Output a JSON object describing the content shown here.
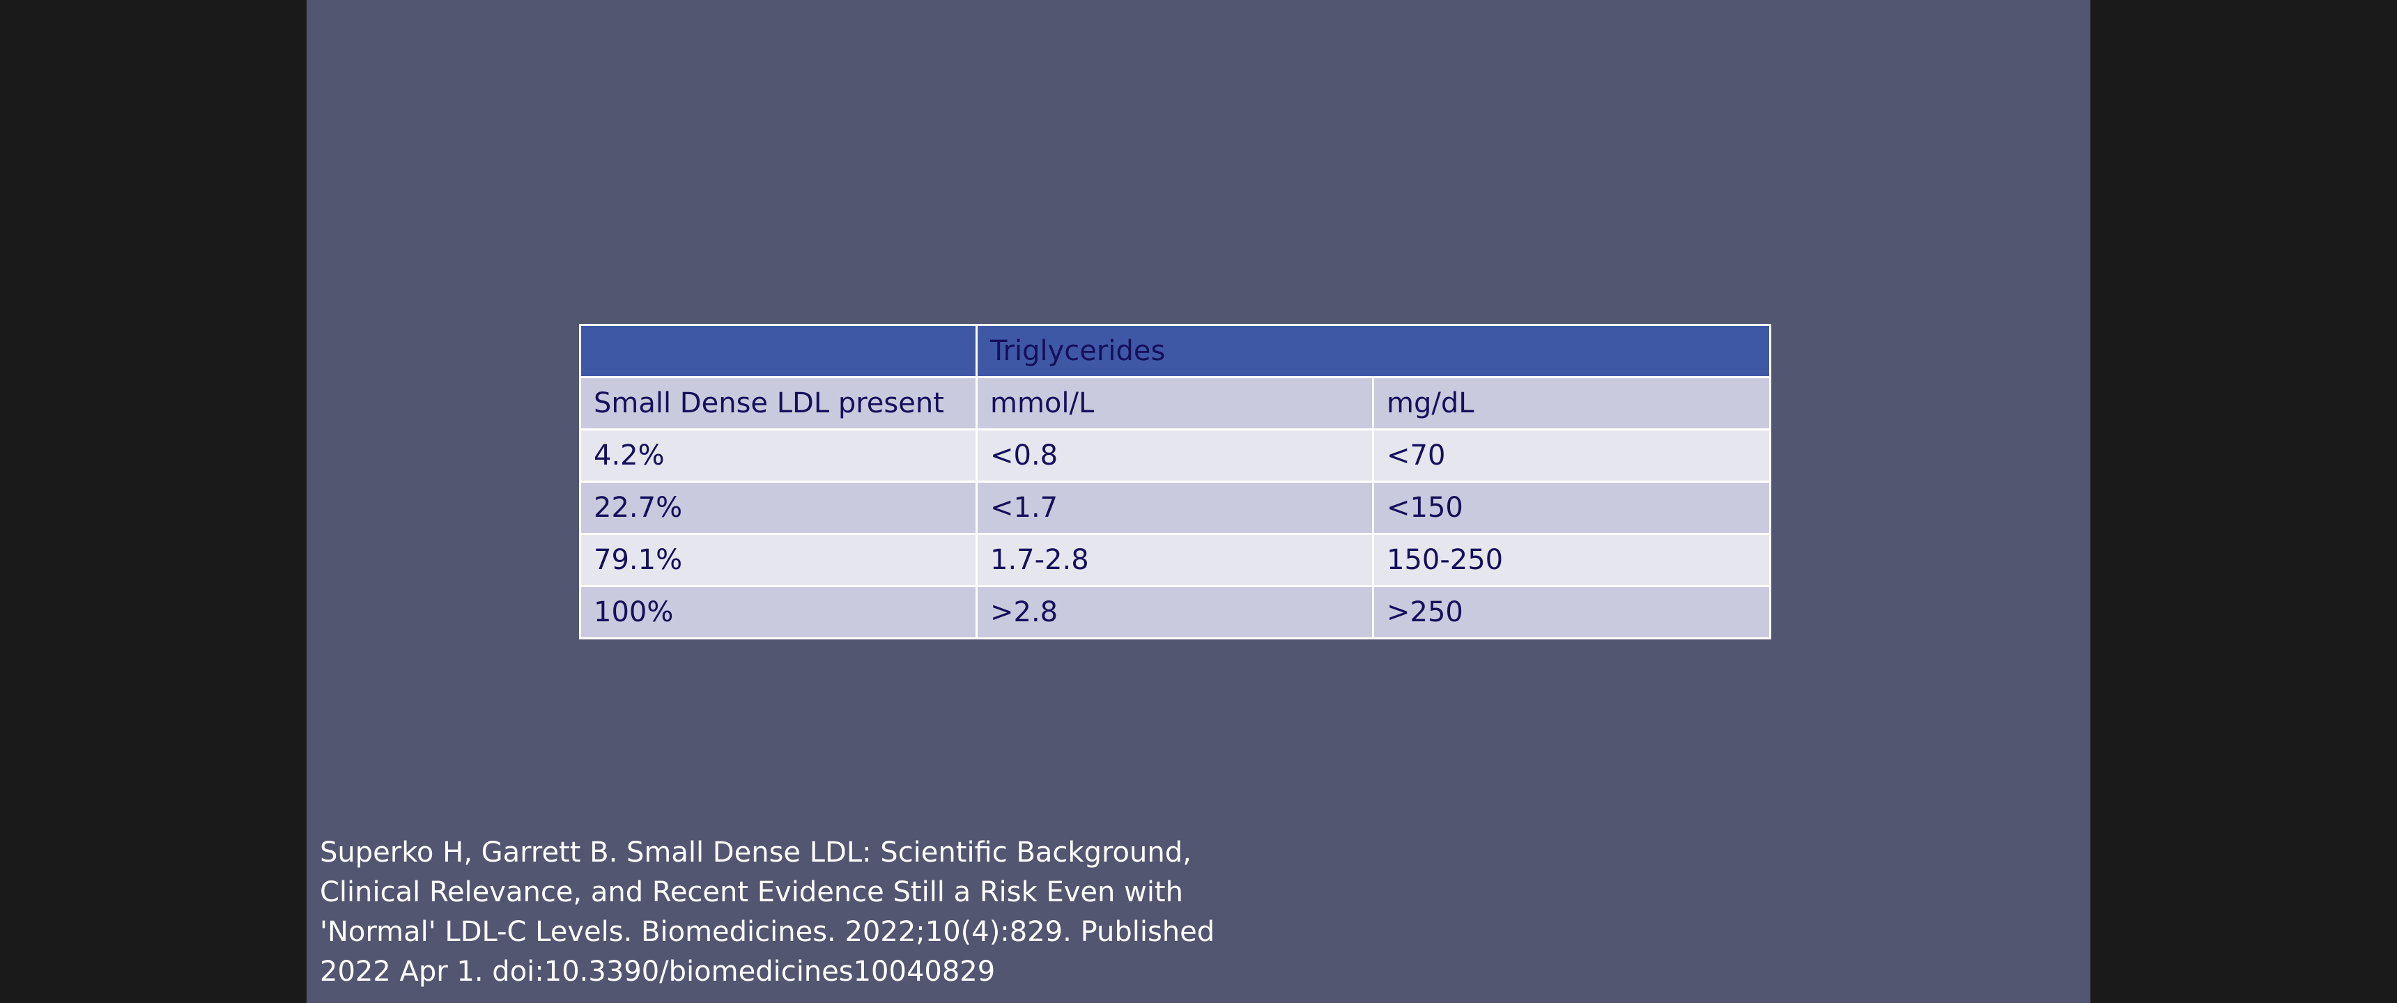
{
  "table": {
    "header": {
      "empty_cell": "",
      "group_title": "Triglycerides"
    },
    "subheader": [
      "Small Dense LDL present",
      "mmol/L",
      "mg/dL"
    ],
    "rows": [
      [
        "4.2%",
        "<0.8",
        "<70"
      ],
      [
        "22.7%",
        "<1.7",
        "<150"
      ],
      [
        "79.1%",
        "1.7-2.8",
        "150-250"
      ],
      [
        "100%",
        ">2.8",
        ">250"
      ]
    ]
  },
  "citation": {
    "lines": [
      "Superko H, Garrett B. Small Dense LDL: Scientific Background,",
      "Clinical Relevance, and Recent Evidence Still a Risk Even with",
      "'Normal' LDL-C Levels. Biomedicines. 2022;10(4):829. Published",
      "2022 Apr 1. doi:10.3390/biomedicines10040829"
    ]
  },
  "colors": {
    "slide_background": "#525670",
    "letterbox": "#1a1a1a",
    "header_fill": "#3f58a6",
    "row_dark": "#c9cade",
    "row_light": "#e6e6ee",
    "cell_text": "#14105a"
  }
}
